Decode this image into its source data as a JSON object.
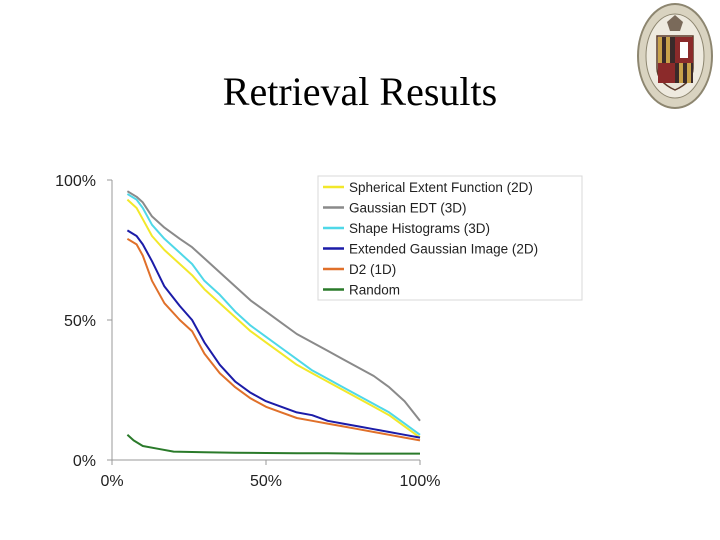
{
  "slide": {
    "title": "Retrieval Results"
  },
  "chart_data": {
    "type": "line",
    "title": "",
    "xlabel": "",
    "ylabel": "",
    "xlim": [
      0,
      100
    ],
    "ylim": [
      0,
      100
    ],
    "x_ticks": [
      "0%",
      "50%",
      "100%"
    ],
    "y_ticks": [
      "0%",
      "50%",
      "100%"
    ],
    "grid": false,
    "legend_position": "top-right",
    "series": [
      {
        "name": "Spherical Extent Function (2D)",
        "color": "#f2e82a",
        "points": [
          [
            5,
            93
          ],
          [
            8,
            90
          ],
          [
            10,
            86
          ],
          [
            13,
            80
          ],
          [
            17,
            75
          ],
          [
            22,
            70
          ],
          [
            26,
            66
          ],
          [
            30,
            61
          ],
          [
            35,
            56
          ],
          [
            40,
            51
          ],
          [
            45,
            46
          ],
          [
            50,
            42
          ],
          [
            55,
            38
          ],
          [
            60,
            34
          ],
          [
            65,
            31
          ],
          [
            70,
            28
          ],
          [
            75,
            25
          ],
          [
            80,
            22
          ],
          [
            85,
            19
          ],
          [
            90,
            16
          ],
          [
            95,
            12
          ],
          [
            100,
            8
          ]
        ]
      },
      {
        "name": "Gaussian EDT (3D)",
        "color": "#8a8a8a",
        "points": [
          [
            5,
            96
          ],
          [
            8,
            94
          ],
          [
            10,
            92
          ],
          [
            13,
            87
          ],
          [
            17,
            83
          ],
          [
            22,
            79
          ],
          [
            26,
            76
          ],
          [
            30,
            72
          ],
          [
            35,
            67
          ],
          [
            40,
            62
          ],
          [
            45,
            57
          ],
          [
            50,
            53
          ],
          [
            55,
            49
          ],
          [
            60,
            45
          ],
          [
            65,
            42
          ],
          [
            70,
            39
          ],
          [
            75,
            36
          ],
          [
            80,
            33
          ],
          [
            85,
            30
          ],
          [
            90,
            26
          ],
          [
            95,
            21
          ],
          [
            100,
            14
          ]
        ]
      },
      {
        "name": "Shape Histograms (3D)",
        "color": "#4fd8e8",
        "points": [
          [
            5,
            95
          ],
          [
            8,
            93
          ],
          [
            10,
            90
          ],
          [
            13,
            84
          ],
          [
            17,
            79
          ],
          [
            22,
            74
          ],
          [
            26,
            70
          ],
          [
            30,
            64
          ],
          [
            35,
            59
          ],
          [
            40,
            53
          ],
          [
            45,
            48
          ],
          [
            50,
            44
          ],
          [
            55,
            40
          ],
          [
            60,
            36
          ],
          [
            65,
            32
          ],
          [
            70,
            29
          ],
          [
            75,
            26
          ],
          [
            80,
            23
          ],
          [
            85,
            20
          ],
          [
            90,
            17
          ],
          [
            95,
            13
          ],
          [
            100,
            9
          ]
        ]
      },
      {
        "name": "Extended Gaussian Image (2D)",
        "color": "#1c1ca8",
        "points": [
          [
            5,
            82
          ],
          [
            8,
            80
          ],
          [
            10,
            77
          ],
          [
            13,
            71
          ],
          [
            17,
            62
          ],
          [
            22,
            55
          ],
          [
            26,
            50
          ],
          [
            30,
            42
          ],
          [
            35,
            34
          ],
          [
            40,
            28
          ],
          [
            45,
            24
          ],
          [
            50,
            21
          ],
          [
            55,
            19
          ],
          [
            60,
            17
          ],
          [
            65,
            16
          ],
          [
            70,
            14
          ],
          [
            75,
            13
          ],
          [
            80,
            12
          ],
          [
            85,
            11
          ],
          [
            90,
            10
          ],
          [
            95,
            9
          ],
          [
            100,
            8
          ]
        ]
      },
      {
        "name": "D2 (1D)",
        "color": "#e0702a",
        "points": [
          [
            5,
            79
          ],
          [
            8,
            77
          ],
          [
            10,
            73
          ],
          [
            13,
            64
          ],
          [
            17,
            56
          ],
          [
            22,
            50
          ],
          [
            26,
            46
          ],
          [
            30,
            38
          ],
          [
            35,
            31
          ],
          [
            40,
            26
          ],
          [
            45,
            22
          ],
          [
            50,
            19
          ],
          [
            55,
            17
          ],
          [
            60,
            15
          ],
          [
            65,
            14
          ],
          [
            70,
            13
          ],
          [
            75,
            12
          ],
          [
            80,
            11
          ],
          [
            85,
            10
          ],
          [
            90,
            9
          ],
          [
            95,
            8
          ],
          [
            100,
            7
          ]
        ]
      },
      {
        "name": "Random",
        "color": "#2a7a2a",
        "points": [
          [
            5,
            9
          ],
          [
            7,
            7
          ],
          [
            10,
            5
          ],
          [
            15,
            4
          ],
          [
            20,
            3
          ],
          [
            30,
            2.8
          ],
          [
            40,
            2.6
          ],
          [
            50,
            2.5
          ],
          [
            60,
            2.4
          ],
          [
            70,
            2.4
          ],
          [
            80,
            2.3
          ],
          [
            90,
            2.3
          ],
          [
            100,
            2.3
          ]
        ]
      }
    ]
  }
}
